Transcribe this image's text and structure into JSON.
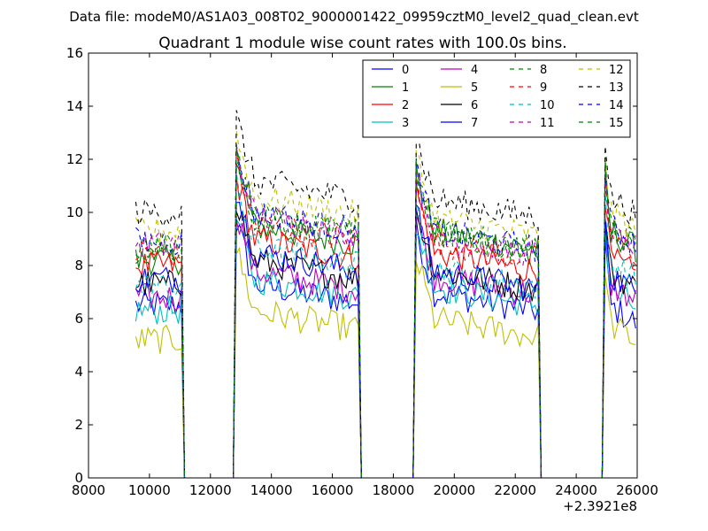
{
  "header": {
    "suptitle": "Data file: modeM0/AS1A03_008T02_9000001422_09959cztM0_level2_quad_clean.evt"
  },
  "chart_data": {
    "type": "line",
    "title": "Quadrant 1 module wise count rates with 100.0s bins.",
    "xlabel": "",
    "ylabel": "",
    "x_offset_label": "+2.3921e8",
    "xlim": [
      8000,
      26000
    ],
    "ylim": [
      0,
      16
    ],
    "xticks": [
      8000,
      10000,
      12000,
      14000,
      16000,
      18000,
      20000,
      22000,
      24000,
      26000
    ],
    "xtick_labels": [
      "8000",
      "10000",
      "12000",
      "14000",
      "16000",
      "18000",
      "20000",
      "22000",
      "24000",
      "26000"
    ],
    "yticks": [
      0,
      2,
      4,
      6,
      8,
      10,
      12,
      14,
      16
    ],
    "ytick_labels": [
      "0",
      "2",
      "4",
      "6",
      "8",
      "10",
      "12",
      "14",
      "16"
    ],
    "legend_position": "top-right",
    "legend_columns": 4,
    "bin_seconds": 100,
    "on_intervals": [
      [
        9550,
        11050
      ],
      [
        12850,
        16850
      ],
      [
        18750,
        22750
      ],
      [
        24950,
        26000
      ]
    ],
    "gap_level": 0,
    "series": [
      {
        "name": "0",
        "color": "#0000ff",
        "dashed": false,
        "levels": [
          6.5,
          7.0,
          6.7,
          6.2
        ]
      },
      {
        "name": "1",
        "color": "#008000",
        "dashed": false,
        "levels": [
          8.2,
          9.2,
          9.0,
          9.0
        ]
      },
      {
        "name": "2",
        "color": "#ff0000",
        "dashed": false,
        "levels": [
          8.0,
          8.7,
          8.2,
          8.0
        ]
      },
      {
        "name": "3",
        "color": "#00bfbf",
        "dashed": false,
        "levels": [
          6.3,
          7.2,
          6.9,
          6.8
        ]
      },
      {
        "name": "4",
        "color": "#bf00bf",
        "dashed": false,
        "levels": [
          6.8,
          7.5,
          7.3,
          7.0
        ]
      },
      {
        "name": "5",
        "color": "#bfbf00",
        "dashed": false,
        "levels": [
          5.2,
          6.0,
          5.7,
          5.5
        ]
      },
      {
        "name": "6",
        "color": "#000000",
        "dashed": false,
        "levels": [
          7.3,
          7.9,
          7.5,
          7.5
        ]
      },
      {
        "name": "7",
        "color": "#0000ff",
        "dashed": false,
        "levels": [
          7.5,
          8.2,
          7.5,
          7.4
        ]
      },
      {
        "name": "8",
        "color": "#008000",
        "dashed": true,
        "levels": [
          8.6,
          9.5,
          9.0,
          9.2
        ]
      },
      {
        "name": "9",
        "color": "#ff0000",
        "dashed": true,
        "levels": [
          8.5,
          9.3,
          8.6,
          8.8
        ]
      },
      {
        "name": "10",
        "color": "#00bfbf",
        "dashed": true,
        "levels": [
          7.2,
          8.4,
          7.6,
          7.9
        ]
      },
      {
        "name": "11",
        "color": "#bf00bf",
        "dashed": true,
        "levels": [
          8.8,
          9.6,
          8.8,
          9.0
        ]
      },
      {
        "name": "12",
        "color": "#bfbf00",
        "dashed": true,
        "levels": [
          9.3,
          10.3,
          9.5,
          9.7
        ]
      },
      {
        "name": "13",
        "color": "#000000",
        "dashed": true,
        "levels": [
          10.0,
          10.9,
          10.2,
          10.3
        ]
      },
      {
        "name": "14",
        "color": "#0000ff",
        "dashed": true,
        "levels": [
          8.9,
          9.7,
          9.0,
          9.2
        ]
      },
      {
        "name": "15",
        "color": "#008000",
        "dashed": true,
        "levels": [
          8.7,
          9.6,
          8.9,
          9.1
        ]
      }
    ]
  }
}
